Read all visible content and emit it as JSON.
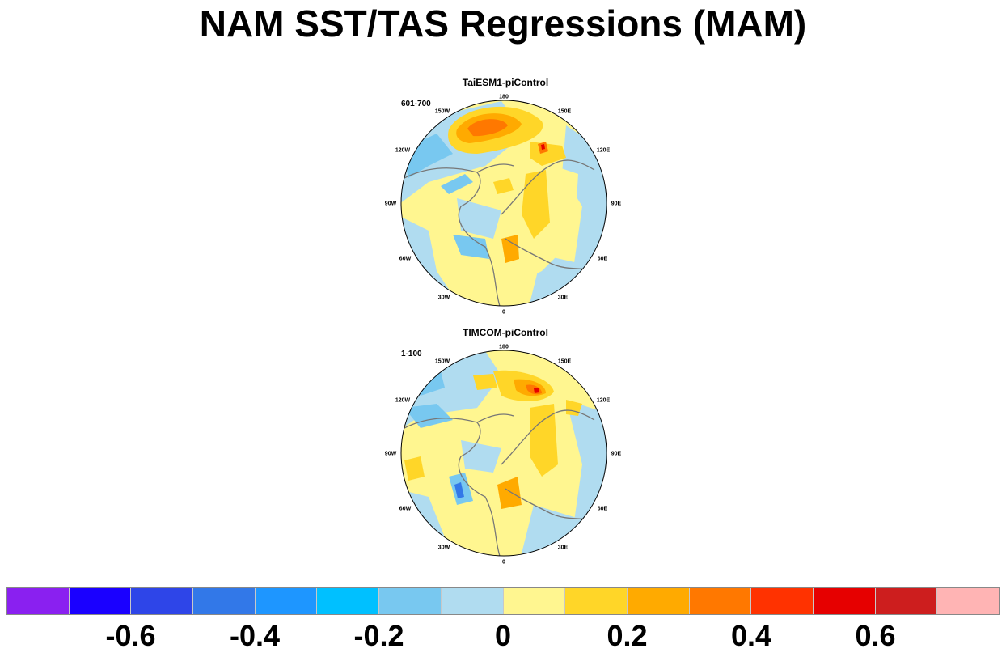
{
  "title": "NAM SST/TAS Regressions (MAM)",
  "panels": [
    {
      "title": "TaiESM1-piControl",
      "period": "601-700",
      "lon_labels": [
        "180",
        "150E",
        "120E",
        "90E",
        "60E",
        "30E",
        "0",
        "30W",
        "60W",
        "90W",
        "120W",
        "150W"
      ]
    },
    {
      "title": "TIMCOM-piControl",
      "period": "1-100",
      "lon_labels": [
        "180",
        "150E",
        "120E",
        "90E",
        "60E",
        "30E",
        "0",
        "30W",
        "60W",
        "90W",
        "120W",
        "150W"
      ]
    }
  ],
  "colorbar": {
    "colors": [
      "#8a20f0",
      "#1a00ff",
      "#2e45e8",
      "#3278e8",
      "#1e96ff",
      "#00c0ff",
      "#78c8f0",
      "#b0dcf0",
      "#fff690",
      "#ffd628",
      "#ffaa00",
      "#ff7800",
      "#ff3200",
      "#e60000",
      "#cd1e1e",
      "#ffb4b4"
    ],
    "labels": [
      "-0.6",
      "-0.4",
      "-0.2",
      "0",
      "0.2",
      "0.4",
      "0.6"
    ]
  }
}
